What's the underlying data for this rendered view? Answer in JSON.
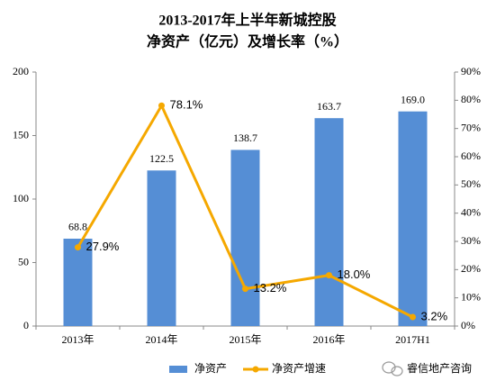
{
  "chart_data": {
    "type": "bar",
    "title": "2013-2017年上半年新城控股",
    "subtitle": "净资产（亿元）及增长率（%）",
    "categories": [
      "2013年",
      "2014年",
      "2015年",
      "2016年",
      "2017H1"
    ],
    "series": [
      {
        "name": "净资产",
        "type": "bar",
        "color": "#558ed5",
        "values": [
          68.8,
          122.5,
          138.7,
          163.7,
          169.0
        ],
        "value_labels": [
          "68.8",
          "122.5",
          "138.7",
          "163.7",
          "169.0"
        ]
      },
      {
        "name": "净资产增速",
        "type": "line",
        "axis": "y2",
        "color": "#f5a800",
        "values": [
          27.9,
          78.1,
          13.2,
          18.0,
          3.2
        ],
        "value_labels": [
          "27.9%",
          "78.1%",
          "13.2%",
          "18.0%",
          "3.2%"
        ]
      }
    ],
    "ylim": [
      0,
      200
    ],
    "yticks": [
      0,
      50,
      100,
      150,
      200
    ],
    "y2lim": [
      0,
      90
    ],
    "y2ticks": [
      {
        "value": 0,
        "label": "0%"
      },
      {
        "value": 10,
        "label": "10%"
      },
      {
        "value": 20,
        "label": "20%"
      },
      {
        "value": 30,
        "label": "30%"
      },
      {
        "value": 40,
        "label": "40%"
      },
      {
        "value": 50,
        "label": "50%"
      },
      {
        "value": 60,
        "label": "60%"
      },
      {
        "value": 70,
        "label": "70%"
      },
      {
        "value": 80,
        "label": "80%"
      },
      {
        "value": 90,
        "label": "90%"
      }
    ],
    "grid": false,
    "legend": "bottom",
    "watermark": "睿信地产咨询"
  }
}
